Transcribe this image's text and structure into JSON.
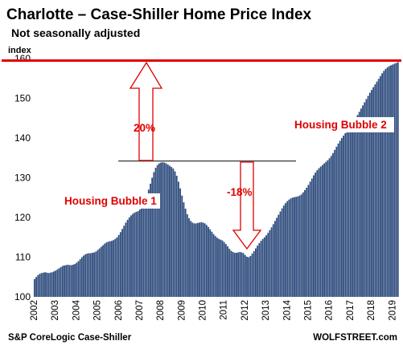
{
  "chart_data": {
    "type": "bar",
    "title": "Charlotte – Case-Shiller Home Price Index",
    "subtitle": "Not seasonally adjusted",
    "ylabel": "index",
    "ylim": [
      100,
      160
    ],
    "yticks": [
      100,
      110,
      120,
      130,
      140,
      150,
      160
    ],
    "x_tick_labels": [
      "2002",
      "2003",
      "2004",
      "2005",
      "2006",
      "2007",
      "2008",
      "2009",
      "2010",
      "2011",
      "2012",
      "2013",
      "2014",
      "2015",
      "2016",
      "2017",
      "2018",
      "2019"
    ],
    "x_start": "2002-01",
    "x_end": "2019-04",
    "source": "S&P CoreLogic Case-Shiller",
    "brand": "WOLFSTREET.com",
    "reference_lines": [
      {
        "value": 159.5,
        "color": "#e00000"
      },
      {
        "value": 134.2,
        "color": "#000000"
      }
    ],
    "series": [
      {
        "color": "#2c4a7c",
        "values": [
          104.5,
          105.0,
          105.5,
          105.8,
          106.0,
          106.1,
          106.2,
          106.1,
          106.0,
          106.1,
          106.2,
          106.4,
          106.6,
          106.9,
          107.2,
          107.5,
          107.8,
          107.9,
          108.0,
          108.1,
          108.0,
          108.0,
          108.1,
          108.3,
          108.6,
          109.0,
          109.5,
          110.0,
          110.4,
          110.7,
          110.9,
          111.0,
          111.0,
          111.1,
          111.2,
          111.4,
          111.8,
          112.2,
          112.6,
          113.0,
          113.4,
          113.7,
          113.9,
          114.0,
          114.1,
          114.3,
          114.6,
          115.0,
          115.6,
          116.3,
          117.1,
          117.9,
          118.7,
          119.4,
          120.0,
          120.5,
          120.9,
          121.2,
          121.4,
          121.6,
          122.0,
          122.6,
          123.4,
          124.4,
          125.6,
          127.0,
          128.5,
          130.0,
          131.4,
          132.5,
          133.2,
          133.6,
          133.8,
          133.9,
          133.8,
          133.6,
          133.3,
          133.0,
          132.7,
          132.3,
          131.6,
          130.5,
          129.0,
          127.3,
          125.5,
          123.8,
          122.2,
          120.8,
          119.8,
          119.1,
          118.7,
          118.5,
          118.5,
          118.6,
          118.7,
          118.8,
          118.7,
          118.5,
          118.1,
          117.6,
          117.0,
          116.4,
          115.8,
          115.3,
          114.9,
          114.6,
          114.4,
          114.2,
          113.8,
          113.3,
          112.7,
          112.1,
          111.6,
          111.3,
          111.1,
          111.1,
          111.2,
          111.3,
          111.2,
          111.0,
          110.5,
          110.1,
          110.0,
          110.3,
          110.9,
          111.5,
          112.2,
          112.9,
          113.5,
          114.1,
          114.6,
          115.0,
          115.5,
          116.1,
          116.8,
          117.5,
          118.3,
          119.1,
          119.9,
          120.7,
          121.5,
          122.3,
          123.0,
          123.6,
          124.1,
          124.5,
          124.8,
          125.0,
          125.1,
          125.2,
          125.3,
          125.5,
          125.8,
          126.3,
          126.9,
          127.5,
          128.2,
          129.0,
          129.8,
          130.6,
          131.3,
          131.9,
          132.4,
          132.8,
          133.2,
          133.6,
          134.0,
          134.4,
          134.9,
          135.5,
          136.2,
          137.0,
          137.8,
          138.6,
          139.3,
          140.0,
          140.6,
          141.2,
          141.8,
          142.4,
          143.0,
          143.6,
          144.3,
          145.0,
          145.8,
          146.6,
          147.4,
          148.2,
          149.0,
          149.8,
          150.6,
          151.4,
          152.1,
          152.8,
          153.5,
          154.2,
          154.9,
          155.6,
          156.3,
          156.9,
          157.4,
          157.8,
          158.1,
          158.3,
          158.5,
          158.7,
          158.9,
          159.1
        ]
      }
    ],
    "annotations": [
      {
        "text": "Housing Bubble 1",
        "color": "#e00000"
      },
      {
        "text": "Housing Bubble 2",
        "color": "#e00000"
      },
      {
        "text": "20%",
        "color": "#e00000"
      },
      {
        "text": "-18%",
        "color": "#e00000"
      }
    ]
  }
}
